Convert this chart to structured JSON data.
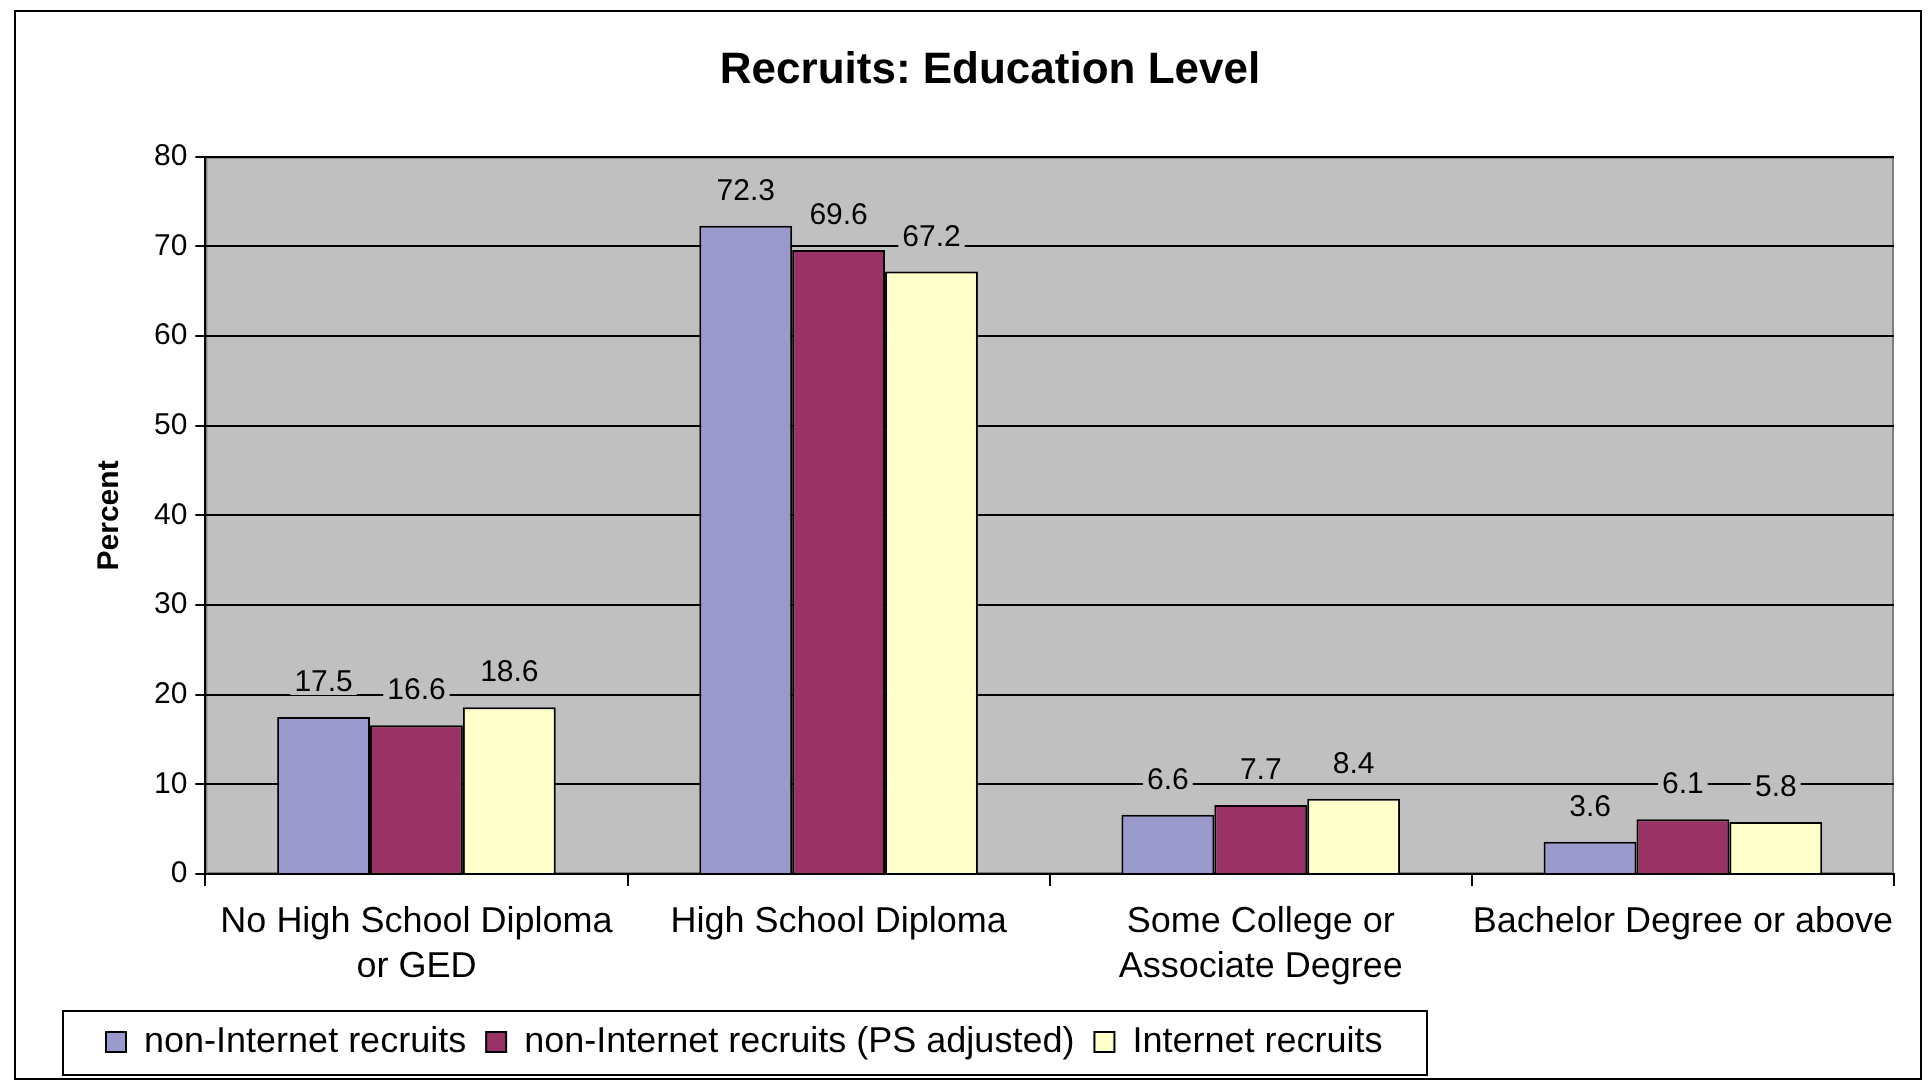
{
  "chart_data": {
    "type": "bar",
    "title": "Recruits: Education Level",
    "ylabel": "Percent",
    "categories": [
      "No High School Diploma or GED",
      "High School Diploma",
      "Some College or Associate Degree",
      "Bachelor Degree or above"
    ],
    "series": [
      {
        "name": "non-Internet recruits",
        "color": "#9999cc",
        "values": [
          17.5,
          72.3,
          6.6,
          3.6
        ]
      },
      {
        "name": "non-Internet recruits (PS adjusted)",
        "color": "#993366",
        "values": [
          16.6,
          69.6,
          7.7,
          6.1
        ]
      },
      {
        "name": "Internet recruits",
        "color": "#ffffcc",
        "values": [
          18.6,
          67.2,
          8.4,
          5.8
        ]
      }
    ],
    "ylim": [
      0,
      80
    ],
    "yticks": [
      0,
      10,
      20,
      30,
      40,
      50,
      60,
      70,
      80
    ],
    "grid": "y",
    "legend": "bottom left",
    "data_labels": true
  }
}
